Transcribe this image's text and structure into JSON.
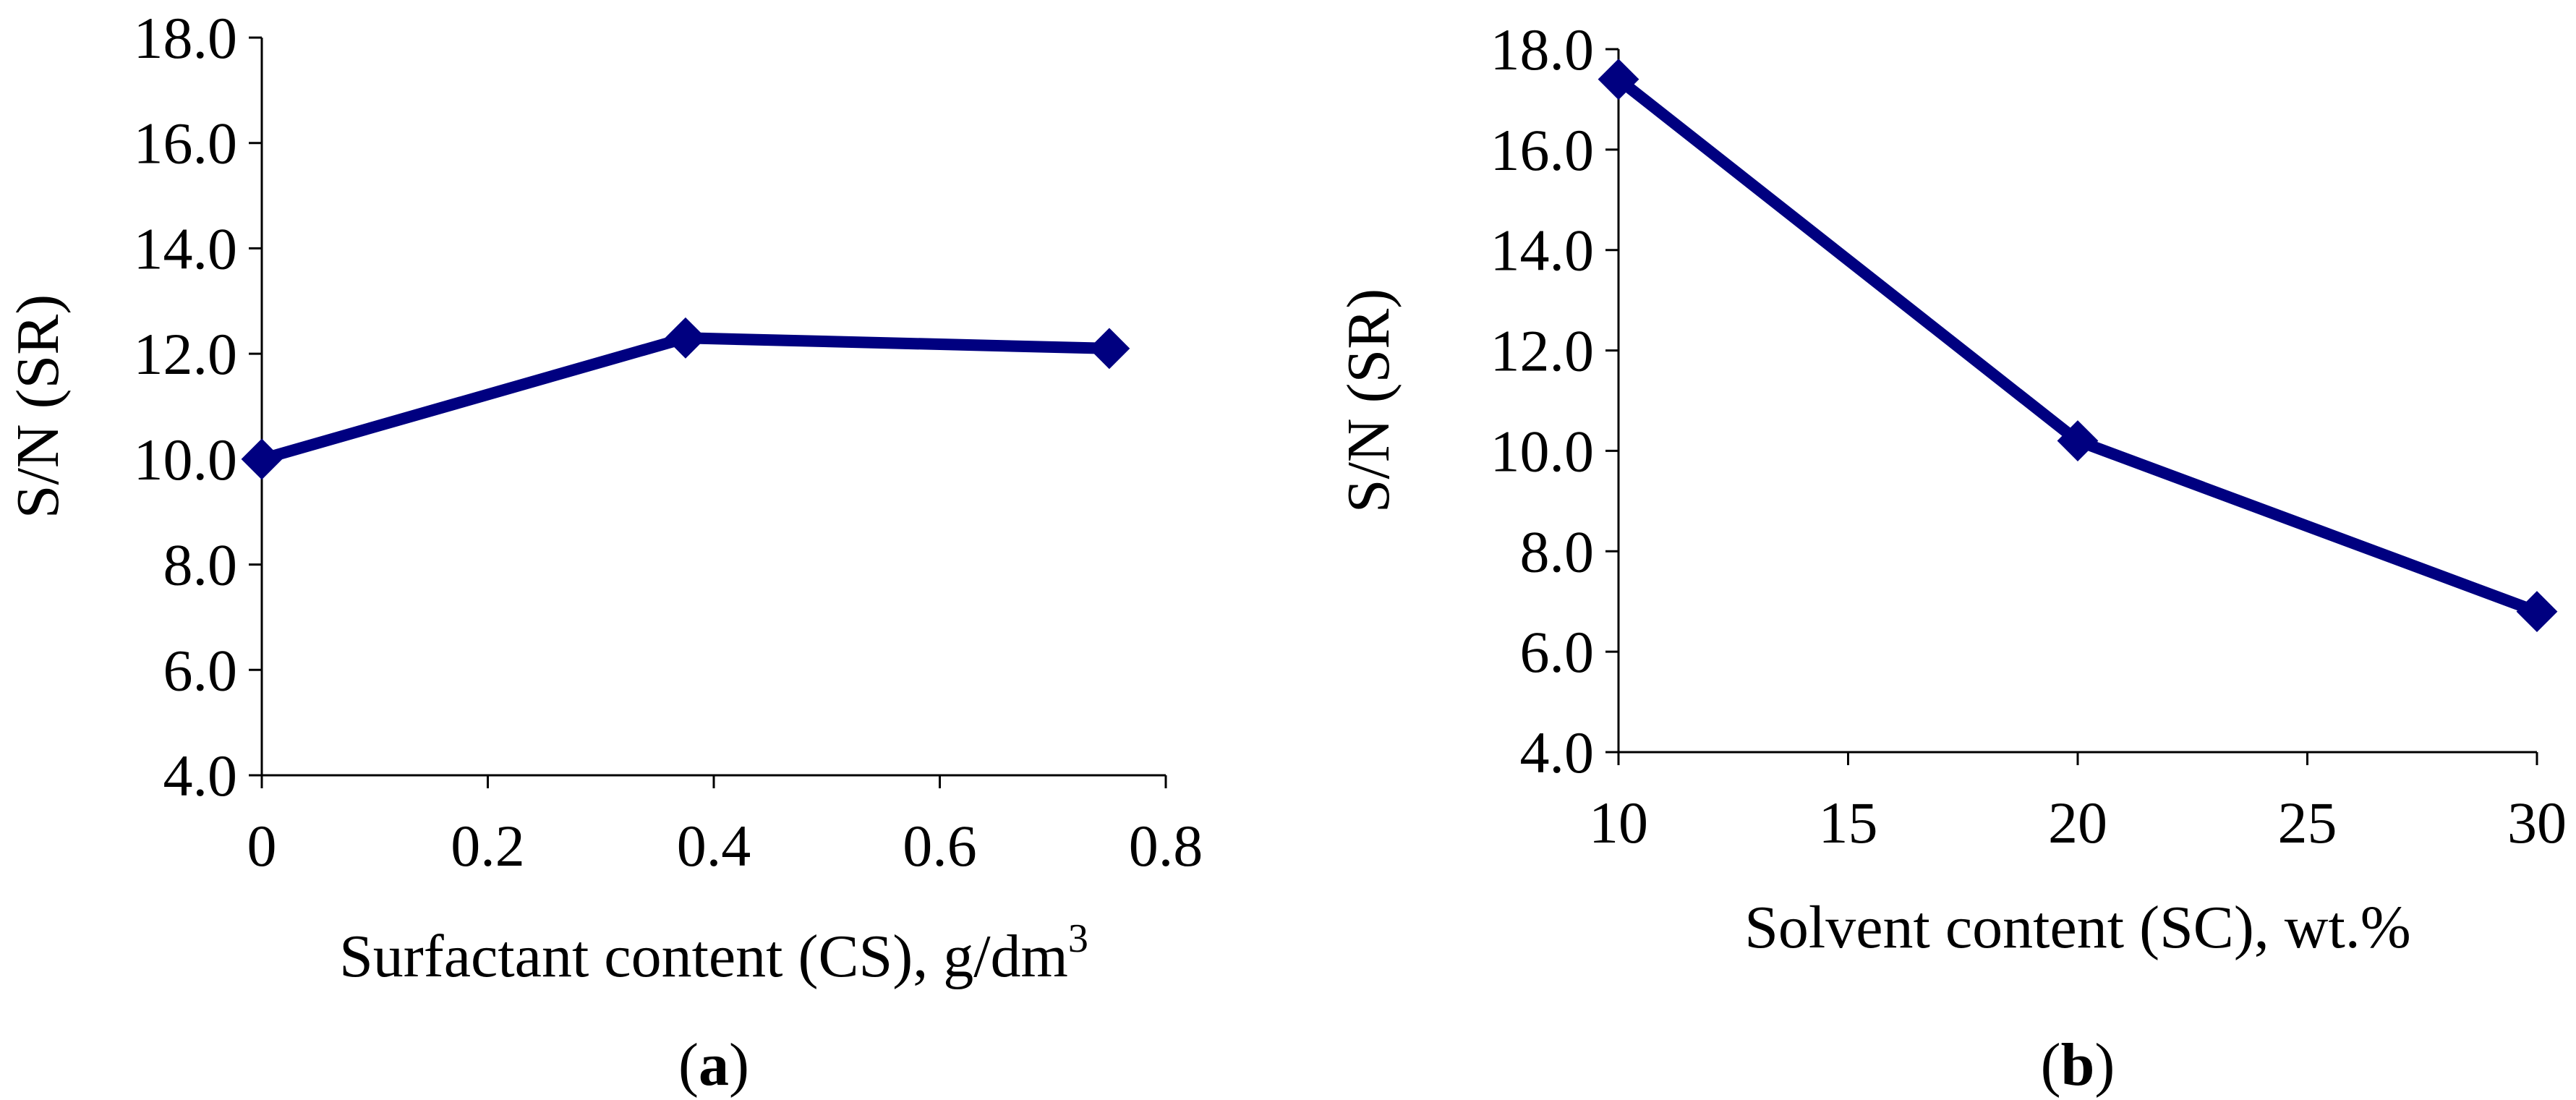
{
  "chart_data": [
    {
      "type": "line",
      "panel_label": "a",
      "xlabel": "Surfactant content (CS), g/dm",
      "xlabel_sup": "3",
      "ylabel": "S/N (SR)",
      "xlim": [
        0,
        0.8
      ],
      "ylim": [
        4.0,
        18.0
      ],
      "x_ticks": [
        "0",
        "0.2",
        "0.4",
        "0.6",
        "0.8"
      ],
      "y_ticks": [
        "4.0",
        "6.0",
        "8.0",
        "10.0",
        "12.0",
        "14.0",
        "16.0",
        "18.0"
      ],
      "grid": false,
      "series": [
        {
          "x": [
            0,
            0.375,
            0.75
          ],
          "y": [
            10.0,
            12.3,
            12.1
          ],
          "color": "#000080",
          "marker": "diamond"
        }
      ]
    },
    {
      "type": "line",
      "panel_label": "b",
      "xlabel": "Solvent content (SC), wt.%",
      "xlabel_sup": "",
      "ylabel": "S/N (SR)",
      "xlim": [
        10,
        30
      ],
      "ylim": [
        4.0,
        18.0
      ],
      "x_ticks": [
        "10",
        "15",
        "20",
        "25",
        "30"
      ],
      "y_ticks": [
        "4.0",
        "6.0",
        "8.0",
        "10.0",
        "12.0",
        "14.0",
        "16.0",
        "18.0"
      ],
      "grid": false,
      "series": [
        {
          "x": [
            10,
            20,
            30
          ],
          "y": [
            17.4,
            10.2,
            6.8
          ],
          "color": "#000080",
          "marker": "diamond"
        }
      ]
    }
  ]
}
